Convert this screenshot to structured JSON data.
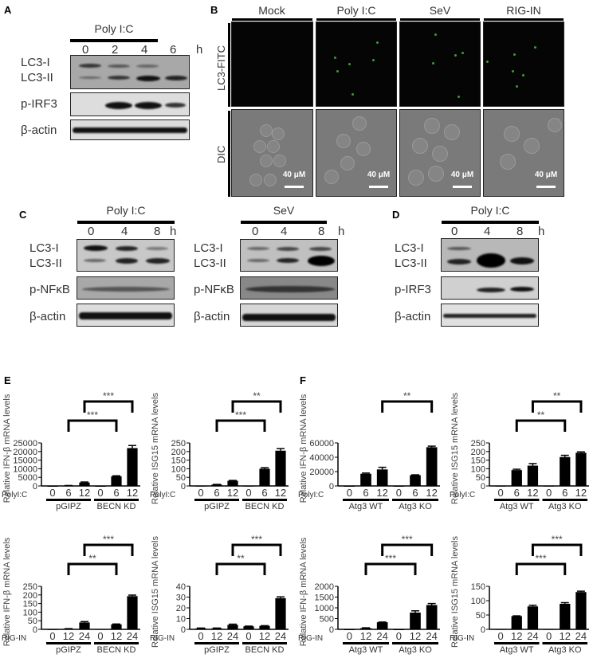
{
  "figure": {
    "panels": {
      "A": {
        "label": "A",
        "treatment": "Poly I:C",
        "time_unit": "h",
        "timepoints": [
          "0",
          "2",
          "4",
          "6"
        ],
        "rows": [
          "LC3-I",
          "LC3-II",
          "p-IRF3",
          "β-actin"
        ]
      },
      "B": {
        "label": "B",
        "columns": [
          "Mock",
          "Poly I:C",
          "SeV",
          "RIG-IN"
        ],
        "row_labels": [
          "LC3-FITC",
          "DIC"
        ],
        "scale_bar": "40 μM"
      },
      "C": {
        "label": "C",
        "blots": [
          {
            "treatment": "Poly I:C",
            "timepoints": [
              "0",
              "4",
              "8"
            ],
            "time_unit": "h",
            "rows": [
              "LC3-I",
              "LC3-II",
              "p-NFκB",
              "β-actin"
            ]
          },
          {
            "treatment": "SeV",
            "timepoints": [
              "0",
              "4",
              "8"
            ],
            "time_unit": "h",
            "rows": [
              "LC3-I",
              "LC3-II",
              "p-NFκB",
              "β-actin"
            ]
          }
        ]
      },
      "D": {
        "label": "D",
        "treatment": "Poly I:C",
        "timepoints": [
          "0",
          "4",
          "8"
        ],
        "time_unit": "h",
        "rows": [
          "LC3-I",
          "LC3-II",
          "p-IRF3",
          "β-actin"
        ]
      },
      "E": {
        "label": "E"
      },
      "F": {
        "label": "F"
      }
    }
  },
  "chart_data": [
    {
      "id": "E1",
      "panel": "E",
      "type": "bar",
      "ylabel": "Relative IFN-β mRNA levels",
      "yticks": [
        0,
        5000,
        10000,
        15000,
        20000,
        25000
      ],
      "ylim": [
        0,
        25000
      ],
      "treatment_label": "PolyI:C",
      "categories": [
        "0",
        "6",
        "12",
        "0",
        "6",
        "12"
      ],
      "groups": [
        "pGIPZ",
        "BECN KD"
      ],
      "values": [
        0,
        200,
        2000,
        0,
        5600,
        22000
      ],
      "errors": [
        0,
        50,
        300,
        0,
        300,
        1500
      ],
      "significance": [
        {
          "from": 1,
          "to": 4,
          "label": "***"
        },
        {
          "from": 2,
          "to": 5,
          "label": "***"
        }
      ]
    },
    {
      "id": "E2",
      "panel": "E",
      "type": "bar",
      "ylabel": "Relative ISG15 mRNA levels",
      "yticks": [
        0,
        50,
        100,
        150,
        200,
        250
      ],
      "ylim": [
        0,
        250
      ],
      "treatment_label": "PolyI:C",
      "categories": [
        "0",
        "6",
        "12",
        "0",
        "6",
        "12"
      ],
      "groups": [
        "pGIPZ",
        "BECN KD"
      ],
      "values": [
        1,
        8,
        30,
        1,
        100,
        205
      ],
      "errors": [
        0,
        1,
        2,
        0,
        6,
        12
      ],
      "significance": [
        {
          "from": 1,
          "to": 4,
          "label": "***"
        },
        {
          "from": 2,
          "to": 5,
          "label": "**"
        }
      ]
    },
    {
      "id": "F1",
      "panel": "F",
      "type": "bar",
      "ylabel": "Relative IFN-β mRNA levels",
      "yticks": [
        0,
        20000,
        40000,
        60000
      ],
      "ylim": [
        0,
        60000
      ],
      "treatment_label": "PolyI:C",
      "categories": [
        "0",
        "6",
        "12",
        "0",
        "6",
        "12"
      ],
      "groups": [
        "Atg3 WT",
        "Atg3 KO"
      ],
      "values": [
        0,
        17000,
        23000,
        0,
        15000,
        54000
      ],
      "errors": [
        0,
        1000,
        3000,
        0,
        500,
        1500
      ],
      "significance": [
        {
          "from": 2,
          "to": 5,
          "label": "**"
        }
      ]
    },
    {
      "id": "F2",
      "panel": "F",
      "type": "bar",
      "ylabel": "Relative ISG15 mRNA levels",
      "yticks": [
        0,
        50,
        100,
        150,
        200,
        250
      ],
      "ylim": [
        0,
        250
      ],
      "treatment_label": "PolyI:C",
      "categories": [
        "0",
        "6",
        "12",
        "0",
        "6",
        "12"
      ],
      "groups": [
        "Atg3 WT",
        "Atg3 KO"
      ],
      "values": [
        1,
        92,
        118,
        1,
        168,
        193
      ],
      "errors": [
        0,
        5,
        12,
        0,
        10,
        5
      ],
      "significance": [
        {
          "from": 1,
          "to": 4,
          "label": "**"
        },
        {
          "from": 2,
          "to": 5,
          "label": "**"
        }
      ]
    },
    {
      "id": "E3",
      "panel": "E",
      "type": "bar",
      "ylabel": "Relative IFN-β mRNA levels",
      "yticks": [
        0,
        50,
        100,
        150,
        200,
        250
      ],
      "ylim": [
        0,
        250
      ],
      "treatment_label": "RIG-IN",
      "categories": [
        "0",
        "12",
        "24",
        "0",
        "12",
        "24"
      ],
      "groups": [
        "pGIPZ",
        "BECN KD"
      ],
      "values": [
        1,
        3,
        40,
        2,
        29,
        193
      ],
      "errors": [
        0,
        1,
        5,
        0,
        2,
        6
      ],
      "significance": [
        {
          "from": 1,
          "to": 4,
          "label": "**"
        },
        {
          "from": 2,
          "to": 5,
          "label": "***"
        }
      ]
    },
    {
      "id": "E4",
      "panel": "E",
      "type": "bar",
      "ylabel": "Relative ISG15 mRNA levels",
      "yticks": [
        0,
        10,
        20,
        30,
        40
      ],
      "ylim": [
        0,
        40
      ],
      "treatment_label": "RIG-IN",
      "categories": [
        "0",
        "12",
        "24",
        "0",
        "12",
        "24"
      ],
      "groups": [
        "pGIPZ",
        "BECN KD"
      ],
      "values": [
        1,
        1,
        4.2,
        2.8,
        3.2,
        29
      ],
      "errors": [
        0.2,
        0.2,
        0.6,
        0.2,
        0.2,
        1.2
      ],
      "significance": [
        {
          "from": 1,
          "to": 4,
          "label": "**"
        },
        {
          "from": 2,
          "to": 5,
          "label": "***"
        }
      ]
    },
    {
      "id": "F3",
      "panel": "F",
      "type": "bar",
      "ylabel": "Relative IFN-β mRNA levels",
      "yticks": [
        0,
        500,
        1000,
        1500,
        2000
      ],
      "ylim": [
        0,
        2000
      ],
      "treatment_label": "RIG-IN",
      "categories": [
        "0",
        "12",
        "24",
        "0",
        "12",
        "24"
      ],
      "groups": [
        "Atg3 WT",
        "Atg3 KO"
      ],
      "values": [
        0,
        60,
        330,
        0,
        780,
        1130
      ],
      "errors": [
        0,
        10,
        10,
        0,
        80,
        70
      ],
      "significance": [
        {
          "from": 1,
          "to": 4,
          "label": "***"
        },
        {
          "from": 2,
          "to": 5,
          "label": "***"
        }
      ]
    },
    {
      "id": "F4",
      "panel": "F",
      "type": "bar",
      "ylabel": "Relative ISG15 mRNA levels",
      "yticks": [
        0,
        50,
        100,
        150
      ],
      "ylim": [
        0,
        150
      ],
      "treatment_label": "RIG-IN",
      "categories": [
        "0",
        "12",
        "24",
        "0",
        "12",
        "24"
      ],
      "groups": [
        "Atg3 WT",
        "Atg3 KO"
      ],
      "values": [
        1,
        46,
        80,
        1,
        89,
        130
      ],
      "errors": [
        0,
        1,
        4,
        0,
        4,
        3
      ],
      "significance": [
        {
          "from": 1,
          "to": 4,
          "label": "***"
        },
        {
          "from": 2,
          "to": 5,
          "label": "***"
        }
      ]
    }
  ]
}
